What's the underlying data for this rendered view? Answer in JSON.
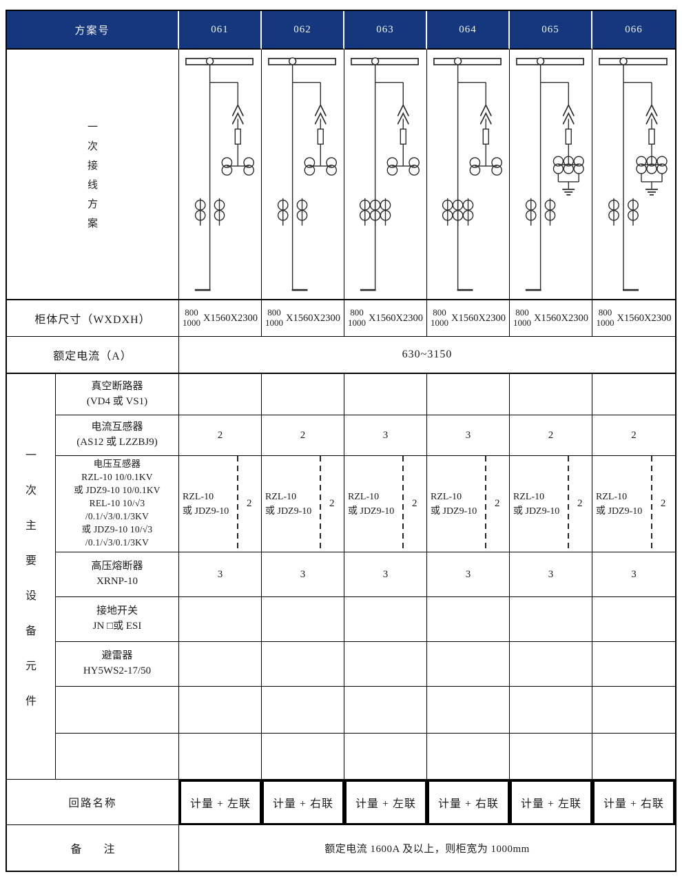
{
  "colors": {
    "header_bg": "#15377e",
    "header_text": "#f5f5f5",
    "diagram_line": "#2a2a2a",
    "border": "#000000"
  },
  "header": {
    "label": "方案号",
    "schemes": [
      "061",
      "062",
      "063",
      "064",
      "065",
      "066"
    ]
  },
  "wiring_row": {
    "label": "一次接线方案"
  },
  "cabinet_row": {
    "label": "柜体尺寸（WXDXH）",
    "cells": {
      "width_top": "800",
      "width_bottom": "1000",
      "suffix": "X1560X2300"
    }
  },
  "rated_row": {
    "label": "额定电流（A）",
    "value": "630~3150"
  },
  "equipment_section": {
    "label": "一次主要设备元件"
  },
  "equipment_rows": [
    {
      "name_lines": [
        "真空断路器",
        "(VD4 或 VS1)"
      ],
      "values": [
        "",
        "",
        "",
        "",
        "",
        ""
      ]
    },
    {
      "name_lines": [
        "电流互感器",
        "(AS12 或 LZZBJ9)"
      ],
      "values": [
        "2",
        "2",
        "3",
        "3",
        "2",
        "2"
      ]
    },
    {
      "name_lines": [
        "电压互感器",
        "RZL-10 10/0.1KV",
        "或 JDZ9-10 10/0.1KV",
        "REL-10 10/√3",
        "/0.1/√3/0.1/3KV",
        "或 JDZ9-10 10/√3",
        "/0.1/√3/0.1/3KV"
      ],
      "pt_cells": {
        "line1": "RZL-10",
        "line2": "或 JDZ9-10",
        "qty": "2"
      }
    },
    {
      "name_lines": [
        "高压熔断器",
        "XRNP-10"
      ],
      "values": [
        "3",
        "3",
        "3",
        "3",
        "3",
        "3"
      ]
    },
    {
      "name_lines": [
        "接地开关",
        "JN □或 ESI"
      ],
      "values": [
        "",
        "",
        "",
        "",
        "",
        ""
      ]
    },
    {
      "name_lines": [
        "避雷器",
        "HY5WS2-17/50"
      ],
      "values": [
        "",
        "",
        "",
        "",
        "",
        ""
      ]
    },
    {
      "name_lines": [
        "",
        ""
      ],
      "values": [
        "",
        "",
        "",
        "",
        "",
        ""
      ]
    },
    {
      "name_lines": [
        "",
        ""
      ],
      "values": [
        "",
        "",
        "",
        "",
        "",
        ""
      ]
    }
  ],
  "circuit_row": {
    "label": "回路名称",
    "values": [
      "计量 + 左联",
      "计量 + 右联",
      "计量 + 左联",
      "计量 + 右联",
      "计量 + 左联",
      "计量 + 右联"
    ]
  },
  "remark_row": {
    "label": "备　　注",
    "value": "额定电流 1600A 及以上，则柜宽为 1000mm"
  },
  "diagrams": [
    {
      "scheme": "061",
      "ct_groups": 2,
      "pt_groups": 2,
      "pt_grounded": false,
      "foot": "left"
    },
    {
      "scheme": "062",
      "ct_groups": 2,
      "pt_groups": 2,
      "pt_grounded": false,
      "foot": "right"
    },
    {
      "scheme": "063",
      "ct_groups": 3,
      "pt_groups": 2,
      "pt_grounded": false,
      "foot": "left"
    },
    {
      "scheme": "064",
      "ct_groups": 3,
      "pt_groups": 2,
      "pt_grounded": false,
      "foot": "right"
    },
    {
      "scheme": "065",
      "ct_groups": 2,
      "pt_groups": 3,
      "pt_grounded": true,
      "foot": "left"
    },
    {
      "scheme": "066",
      "ct_groups": 2,
      "pt_groups": 3,
      "pt_grounded": true,
      "foot": "right"
    }
  ]
}
